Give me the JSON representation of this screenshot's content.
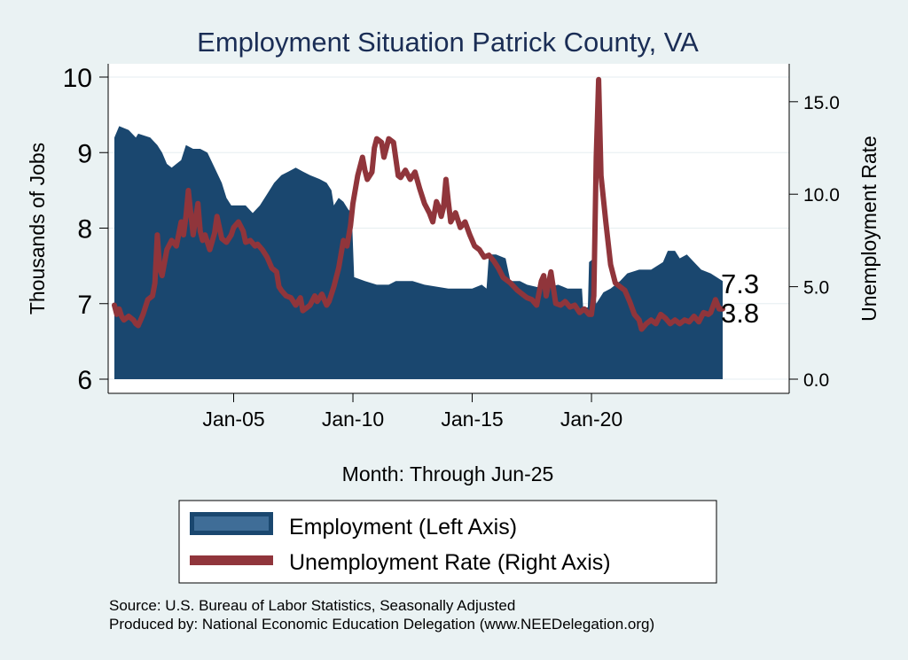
{
  "chart_data": {
    "type": "area+line",
    "title": "Employment Situation Patrick  County, VA",
    "xlabel": "Month: Through Jun-25",
    "ylabel_left": "Thousands of Jobs",
    "ylabel_right": "Unemployment Rate",
    "x_range": [
      2000.0,
      2025.5
    ],
    "ylim_left": [
      6,
      10
    ],
    "ylim_right": [
      0,
      16.5
    ],
    "yticks_left": [
      6,
      7,
      8,
      9,
      10
    ],
    "yticks_right": [
      0,
      5,
      10,
      15
    ],
    "yticks_right_labels": [
      "0.0",
      "5.0",
      "10.0",
      "15.0"
    ],
    "xticks": [
      {
        "t": 2005.0,
        "label": "Jan-05"
      },
      {
        "t": 2010.0,
        "label": "Jan-10"
      },
      {
        "t": 2015.0,
        "label": "Jan-15"
      },
      {
        "t": 2020.0,
        "label": "Jan-20"
      }
    ],
    "series": [
      {
        "name": "Employment (Left Axis)",
        "type": "area",
        "color": "#1a476f",
        "points": [
          [
            2000.0,
            9.2
          ],
          [
            2000.2,
            9.35
          ],
          [
            2000.6,
            9.3
          ],
          [
            2000.9,
            9.2
          ],
          [
            2001.0,
            9.25
          ],
          [
            2001.5,
            9.2
          ],
          [
            2001.8,
            9.1
          ],
          [
            2002.0,
            9.0
          ],
          [
            2002.2,
            8.85
          ],
          [
            2002.4,
            8.8
          ],
          [
            2002.6,
            8.85
          ],
          [
            2002.8,
            8.9
          ],
          [
            2003.0,
            9.1
          ],
          [
            2003.3,
            9.05
          ],
          [
            2003.6,
            9.05
          ],
          [
            2003.9,
            9.0
          ],
          [
            2004.2,
            8.8
          ],
          [
            2004.5,
            8.6
          ],
          [
            2004.7,
            8.4
          ],
          [
            2004.9,
            8.3
          ],
          [
            2005.2,
            8.3
          ],
          [
            2005.5,
            8.3
          ],
          [
            2005.8,
            8.2
          ],
          [
            2006.1,
            8.3
          ],
          [
            2006.4,
            8.45
          ],
          [
            2006.7,
            8.6
          ],
          [
            2007.0,
            8.7
          ],
          [
            2007.3,
            8.75
          ],
          [
            2007.6,
            8.8
          ],
          [
            2007.9,
            8.75
          ],
          [
            2008.2,
            8.7
          ],
          [
            2008.6,
            8.65
          ],
          [
            2008.9,
            8.6
          ],
          [
            2009.1,
            8.5
          ],
          [
            2009.2,
            8.3
          ],
          [
            2009.4,
            8.4
          ],
          [
            2009.6,
            8.35
          ],
          [
            2009.8,
            8.25
          ],
          [
            2009.95,
            8.2
          ],
          [
            2010.05,
            7.35
          ],
          [
            2010.5,
            7.3
          ],
          [
            2011.0,
            7.25
          ],
          [
            2011.5,
            7.25
          ],
          [
            2011.8,
            7.3
          ],
          [
            2012.5,
            7.3
          ],
          [
            2013.0,
            7.25
          ],
          [
            2014.0,
            7.2
          ],
          [
            2015.0,
            7.2
          ],
          [
            2015.4,
            7.25
          ],
          [
            2015.6,
            7.2
          ],
          [
            2015.7,
            7.65
          ],
          [
            2016.0,
            7.65
          ],
          [
            2016.4,
            7.6
          ],
          [
            2016.6,
            7.3
          ],
          [
            2017.0,
            7.3
          ],
          [
            2017.3,
            7.25
          ],
          [
            2018.0,
            7.2
          ],
          [
            2018.6,
            7.25
          ],
          [
            2019.0,
            7.2
          ],
          [
            2019.4,
            7.2
          ],
          [
            2019.6,
            7.2
          ],
          [
            2019.65,
            6.95
          ],
          [
            2019.85,
            6.95
          ],
          [
            2019.9,
            7.55
          ],
          [
            2020.1,
            7.6
          ],
          [
            2020.2,
            7.0
          ],
          [
            2020.5,
            7.15
          ],
          [
            2020.8,
            7.2
          ],
          [
            2021.2,
            7.3
          ],
          [
            2021.5,
            7.4
          ],
          [
            2022.0,
            7.45
          ],
          [
            2022.5,
            7.45
          ],
          [
            2023.0,
            7.55
          ],
          [
            2023.2,
            7.7
          ],
          [
            2023.5,
            7.7
          ],
          [
            2023.7,
            7.6
          ],
          [
            2024.0,
            7.65
          ],
          [
            2024.3,
            7.55
          ],
          [
            2024.6,
            7.45
          ],
          [
            2025.0,
            7.4
          ],
          [
            2025.5,
            7.3
          ]
        ]
      },
      {
        "name": "Unemployment Rate (Right Axis)",
        "type": "line",
        "color": "#90353b",
        "points": [
          [
            2000.0,
            4.0
          ],
          [
            2000.1,
            3.5
          ],
          [
            2000.2,
            3.8
          ],
          [
            2000.3,
            3.4
          ],
          [
            2000.4,
            3.2
          ],
          [
            2000.6,
            3.4
          ],
          [
            2000.8,
            3.2
          ],
          [
            2000.9,
            3.0
          ],
          [
            2001.0,
            2.9
          ],
          [
            2001.2,
            3.5
          ],
          [
            2001.4,
            4.3
          ],
          [
            2001.6,
            4.5
          ],
          [
            2001.7,
            5.2
          ],
          [
            2001.8,
            7.8
          ],
          [
            2001.9,
            6.0
          ],
          [
            2002.0,
            5.6
          ],
          [
            2002.2,
            7.0
          ],
          [
            2002.4,
            7.5
          ],
          [
            2002.6,
            7.2
          ],
          [
            2002.8,
            8.5
          ],
          [
            2002.9,
            7.8
          ],
          [
            2003.0,
            8.8
          ],
          [
            2003.1,
            10.2
          ],
          [
            2003.2,
            9.0
          ],
          [
            2003.3,
            7.8
          ],
          [
            2003.5,
            9.5
          ],
          [
            2003.6,
            8.0
          ],
          [
            2003.7,
            7.5
          ],
          [
            2003.8,
            7.8
          ],
          [
            2004.0,
            7.0
          ],
          [
            2004.2,
            7.9
          ],
          [
            2004.3,
            8.8
          ],
          [
            2004.5,
            7.6
          ],
          [
            2004.7,
            7.4
          ],
          [
            2004.9,
            7.8
          ],
          [
            2005.0,
            8.2
          ],
          [
            2005.2,
            8.5
          ],
          [
            2005.4,
            8.0
          ],
          [
            2005.5,
            7.4
          ],
          [
            2005.7,
            7.5
          ],
          [
            2005.9,
            7.2
          ],
          [
            2006.0,
            7.3
          ],
          [
            2006.2,
            7.0
          ],
          [
            2006.4,
            6.6
          ],
          [
            2006.6,
            6.0
          ],
          [
            2006.8,
            5.8
          ],
          [
            2006.9,
            5.0
          ],
          [
            2007.0,
            4.8
          ],
          [
            2007.2,
            4.5
          ],
          [
            2007.4,
            4.4
          ],
          [
            2007.6,
            4.0
          ],
          [
            2007.8,
            4.4
          ],
          [
            2007.9,
            3.7
          ],
          [
            2008.0,
            3.8
          ],
          [
            2008.2,
            4.0
          ],
          [
            2008.4,
            4.5
          ],
          [
            2008.5,
            4.2
          ],
          [
            2008.7,
            4.6
          ],
          [
            2008.9,
            4.0
          ],
          [
            2009.0,
            4.2
          ],
          [
            2009.2,
            5.0
          ],
          [
            2009.4,
            6.0
          ],
          [
            2009.6,
            7.5
          ],
          [
            2009.75,
            7.2
          ],
          [
            2009.9,
            8.3
          ],
          [
            2010.0,
            9.5
          ],
          [
            2010.2,
            11.0
          ],
          [
            2010.4,
            12.0
          ],
          [
            2010.5,
            11.3
          ],
          [
            2010.6,
            10.8
          ],
          [
            2010.8,
            11.2
          ],
          [
            2010.9,
            12.5
          ],
          [
            2011.0,
            13.0
          ],
          [
            2011.2,
            12.8
          ],
          [
            2011.3,
            12.0
          ],
          [
            2011.5,
            13.0
          ],
          [
            2011.7,
            12.8
          ],
          [
            2011.9,
            11.0
          ],
          [
            2012.0,
            10.9
          ],
          [
            2012.2,
            11.3
          ],
          [
            2012.4,
            10.8
          ],
          [
            2012.6,
            11.2
          ],
          [
            2012.8,
            10.3
          ],
          [
            2013.0,
            9.5
          ],
          [
            2013.2,
            9.0
          ],
          [
            2013.35,
            8.5
          ],
          [
            2013.5,
            9.6
          ],
          [
            2013.6,
            9.3
          ],
          [
            2013.7,
            8.8
          ],
          [
            2013.8,
            9.3
          ],
          [
            2013.9,
            10.8
          ],
          [
            2014.0,
            9.6
          ],
          [
            2014.1,
            8.5
          ],
          [
            2014.3,
            9.0
          ],
          [
            2014.5,
            8.2
          ],
          [
            2014.7,
            8.5
          ],
          [
            2014.9,
            7.8
          ],
          [
            2015.1,
            7.2
          ],
          [
            2015.3,
            7.0
          ],
          [
            2015.5,
            6.6
          ],
          [
            2015.7,
            6.7
          ],
          [
            2015.9,
            6.4
          ],
          [
            2016.1,
            6.0
          ],
          [
            2016.3,
            5.5
          ],
          [
            2016.6,
            5.2
          ],
          [
            2016.9,
            4.8
          ],
          [
            2017.1,
            4.6
          ],
          [
            2017.3,
            4.4
          ],
          [
            2017.5,
            4.3
          ],
          [
            2017.7,
            4.0
          ],
          [
            2017.9,
            5.3
          ],
          [
            2018.0,
            5.6
          ],
          [
            2018.1,
            4.5
          ],
          [
            2018.3,
            5.8
          ],
          [
            2018.5,
            4.1
          ],
          [
            2018.7,
            4.0
          ],
          [
            2018.9,
            4.2
          ],
          [
            2019.1,
            3.9
          ],
          [
            2019.3,
            4.0
          ],
          [
            2019.5,
            3.6
          ],
          [
            2019.7,
            3.8
          ],
          [
            2019.9,
            3.5
          ],
          [
            2020.0,
            3.5
          ],
          [
            2020.1,
            4.5
          ],
          [
            2020.2,
            12.0
          ],
          [
            2020.3,
            16.2
          ],
          [
            2020.4,
            11.0
          ],
          [
            2020.6,
            8.5
          ],
          [
            2020.8,
            6.2
          ],
          [
            2021.0,
            5.2
          ],
          [
            2021.2,
            5.0
          ],
          [
            2021.4,
            4.8
          ],
          [
            2021.6,
            4.2
          ],
          [
            2021.8,
            3.5
          ],
          [
            2022.0,
            3.2
          ],
          [
            2022.1,
            2.7
          ],
          [
            2022.3,
            3.0
          ],
          [
            2022.5,
            3.2
          ],
          [
            2022.7,
            3.0
          ],
          [
            2022.9,
            3.5
          ],
          [
            2023.1,
            3.3
          ],
          [
            2023.3,
            3.0
          ],
          [
            2023.5,
            3.2
          ],
          [
            2023.7,
            3.0
          ],
          [
            2023.9,
            3.2
          ],
          [
            2024.1,
            3.1
          ],
          [
            2024.3,
            3.4
          ],
          [
            2024.5,
            3.1
          ],
          [
            2024.7,
            3.6
          ],
          [
            2024.9,
            3.5
          ],
          [
            2025.0,
            3.6
          ],
          [
            2025.2,
            4.3
          ],
          [
            2025.35,
            3.8
          ],
          [
            2025.5,
            3.8
          ]
        ]
      }
    ],
    "end_labels": {
      "employment": "7.3",
      "unemployment": "3.8"
    },
    "legend": {
      "position": "bottom",
      "items": [
        "Employment (Left Axis)",
        "Unemployment Rate (Right Axis)"
      ]
    },
    "source_line1": "Source: U.S. Bureau of Labor Statistics, Seasonally Adjusted",
    "source_line2": "Produced by: National Economic Education Delegation (www.NEEDelegation.org)"
  }
}
